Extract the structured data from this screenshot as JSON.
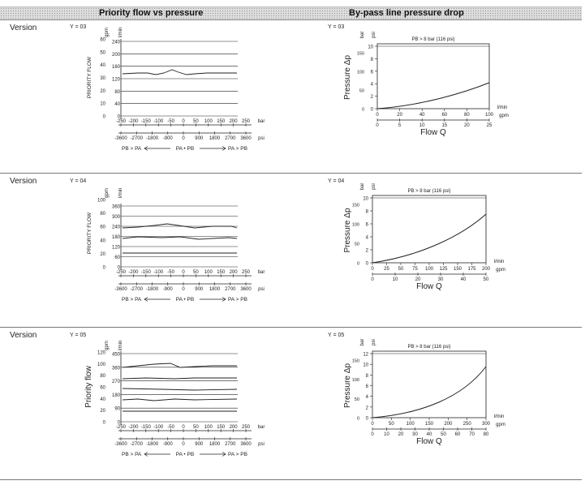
{
  "header": {
    "col_left": "Priority flow vs pressure",
    "col_right": "By-pass line pressure drop"
  },
  "rows": [
    {
      "version_label": "Version",
      "y_label": "Y = 03",
      "priority": {
        "y_axis_title": "PRIORITY FLOW",
        "gpm_label": "gpm",
        "lmin_label": "l/min",
        "gpm_ticks": [
          "60",
          "50",
          "40",
          "30",
          "20",
          "10",
          "0"
        ],
        "lmin_ticks": [
          "240",
          "200",
          "160",
          "120",
          "80",
          "40",
          "0"
        ],
        "bar_ticks": [
          "-250",
          "-200",
          "-150",
          "-100",
          "-50",
          "0",
          "50",
          "100",
          "150",
          "200",
          "250"
        ],
        "psi_ticks": [
          "-3600",
          "-2700",
          "-1800",
          "-900",
          "0",
          "900",
          "1800",
          "2700",
          "3600"
        ],
        "bar_unit": "bar",
        "psi_unit": "psi",
        "legend": {
          "left": "PB > PA",
          "mid": "PA • PB",
          "right": "PA > PB"
        }
      },
      "bypass": {
        "y_label": "Y = 03",
        "note": "PB > 8 bar (116 psi)",
        "y_axis_title": "Pressure Δp",
        "x_axis_title": "Flow Q",
        "bar_label": "bar",
        "psi_label": "psi",
        "lmin_label": "l/min",
        "gpm_label": "gpm",
        "bar_ticks": [
          "10",
          "8",
          "6",
          "4",
          "2",
          "0"
        ],
        "psi_ticks": [
          "150",
          "100",
          "50",
          "0"
        ],
        "lmin_ticks": [
          "0",
          "20",
          "40",
          "60",
          "80",
          "100"
        ],
        "gpm_ticks": [
          "0",
          "5",
          "10",
          "15",
          "20",
          "25"
        ]
      }
    },
    {
      "version_label": "Version",
      "y_label": "Y = 04",
      "priority": {
        "y_axis_title": "PRIORITY FLOW",
        "gpm_label": "gpm",
        "lmin_label": "l/min",
        "gpm_ticks": [
          "100",
          "80",
          "60",
          "40",
          "20",
          "0"
        ],
        "lmin_ticks": [
          "360",
          "300",
          "240",
          "180",
          "120",
          "60",
          "0"
        ],
        "bar_ticks": [
          "-250",
          "-200",
          "-150",
          "-100",
          "-50",
          "0",
          "50",
          "100",
          "150",
          "200",
          "250"
        ],
        "psi_ticks": [
          "-3600",
          "-2700",
          "-1800",
          "-900",
          "0",
          "900",
          "1800",
          "2700",
          "3600"
        ],
        "bar_unit": "bar",
        "psi_unit": "psi",
        "legend": {
          "left": "PB > PA",
          "mid": "PA • PB",
          "right": "PA > PB"
        }
      },
      "bypass": {
        "y_label": "Y = 04",
        "note": "PB > 8 bar (116 psi)",
        "y_axis_title": "Pressure Δp",
        "x_axis_title": "Flow Q",
        "bar_label": "bar",
        "psi_label": "psi",
        "lmin_label": "l/min",
        "gpm_label": "gpm",
        "bar_ticks": [
          "10",
          "8",
          "6",
          "4",
          "2",
          "0"
        ],
        "psi_ticks": [
          "150",
          "100",
          "50",
          "0"
        ],
        "lmin_ticks": [
          "0",
          "25",
          "50",
          "75",
          "100",
          "125",
          "150",
          "175",
          "200"
        ],
        "gpm_ticks": [
          "0",
          "10",
          "20",
          "30",
          "40",
          "50"
        ]
      }
    },
    {
      "version_label": "Version",
      "y_label": "Y = 05",
      "priority": {
        "y_axis_title": "Priority flow",
        "gpm_label": "gpm",
        "lmin_label": "l/min",
        "gpm_ticks": [
          "120",
          "100",
          "80",
          "60",
          "40",
          "20",
          "0"
        ],
        "lmin_ticks": [
          "450",
          "360",
          "270",
          "180",
          "90",
          "0"
        ],
        "bar_ticks": [
          "-250",
          "-200",
          "-150",
          "-100",
          "-50",
          "0",
          "50",
          "100",
          "150",
          "200",
          "250"
        ],
        "psi_ticks": [
          "-3600",
          "-2700",
          "-1800",
          "-900",
          "0",
          "900",
          "1800",
          "2700",
          "3600"
        ],
        "bar_unit": "bar",
        "psi_unit": "psi",
        "legend": {
          "left": "PB > PA",
          "mid": "PA • PB",
          "right": "PA > PB"
        }
      },
      "bypass": {
        "y_label": "Y = 05",
        "note": "PB > 8 bar (116 psi)",
        "y_axis_title": "Pressure Δp",
        "x_axis_title": "Flow Q",
        "bar_label": "bar",
        "psi_label": "psi",
        "lmin_label": "l/min",
        "gpm_label": "gpm",
        "bar_ticks": [
          "12",
          "10",
          "8",
          "6",
          "4",
          "2",
          "0"
        ],
        "psi_ticks": [
          "150",
          "100",
          "50",
          "0"
        ],
        "lmin_ticks": [
          "0",
          "50",
          "100",
          "150",
          "200",
          "250",
          "300"
        ],
        "gpm_ticks": [
          "0",
          "10",
          "20",
          "30",
          "40",
          "50",
          "60",
          "70",
          "80"
        ]
      }
    }
  ]
}
